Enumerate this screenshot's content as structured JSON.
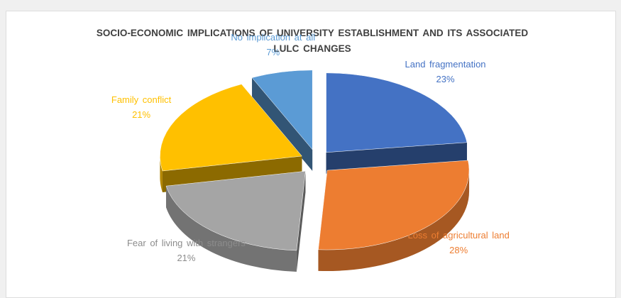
{
  "chart_data": {
    "type": "pie",
    "title": "SOCIO-ECONOMIC IMPLICATIONS OF UNIVERSITY ESTABLISHMENT AND ITS ASSOCIATED LULC CHANGES",
    "categories": [
      "Land fragmentation",
      "Loss of agricultural land",
      "Fear of living with strangers",
      "Family conflict",
      "No implication at all"
    ],
    "values": [
      23,
      28,
      21,
      21,
      7
    ],
    "value_labels": [
      "23%",
      "28%",
      "21%",
      "21%",
      "7%"
    ],
    "colors": [
      "#4472c4",
      "#ed7d31",
      "#a5a5a5",
      "#ffc000",
      "#5b9bd5"
    ]
  }
}
